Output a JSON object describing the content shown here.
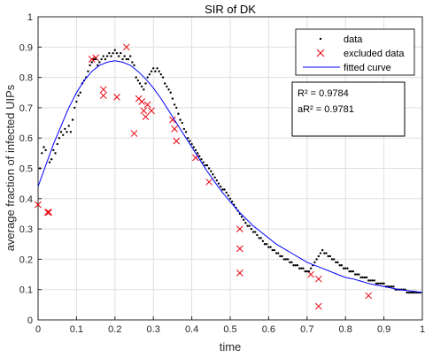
{
  "chart_data": {
    "type": "scatter",
    "title": "SIR of DK",
    "xlabel": "time",
    "ylabel": "average fraction of infected UIPs",
    "xlim": [
      0,
      1
    ],
    "ylim": [
      0,
      1
    ],
    "xticks": [
      "0",
      "0.1",
      "0.2",
      "0.3",
      "0.4",
      "0.5",
      "0.6",
      "0.7",
      "0.8",
      "0.9",
      "1"
    ],
    "yticks": [
      "0",
      "0.1",
      "0.2",
      "0.3",
      "0.4",
      "0.5",
      "0.6",
      "0.7",
      "0.8",
      "0.9",
      "1"
    ],
    "grid": true,
    "legend": {
      "placement": "top-right",
      "entries": [
        "data",
        "excluded data",
        "fitted curve"
      ]
    },
    "stats": {
      "r2": "R² = 0.9784",
      "ar2": "aR² = 0.9781"
    },
    "colors": {
      "data": "#000000",
      "excluded": "#e8000b",
      "fitted": "#0000ff"
    },
    "series": [
      {
        "name": "data",
        "style": "dots",
        "points": [
          [
            0.005,
            0.5
          ],
          [
            0.01,
            0.55
          ],
          [
            0.015,
            0.57
          ],
          [
            0.02,
            0.56
          ],
          [
            0.03,
            0.52
          ],
          [
            0.035,
            0.53
          ],
          [
            0.04,
            0.56
          ],
          [
            0.045,
            0.55
          ],
          [
            0.05,
            0.58
          ],
          [
            0.055,
            0.6
          ],
          [
            0.06,
            0.62
          ],
          [
            0.065,
            0.61
          ],
          [
            0.07,
            0.63
          ],
          [
            0.075,
            0.62
          ],
          [
            0.08,
            0.64
          ],
          [
            0.085,
            0.62
          ],
          [
            0.09,
            0.66
          ],
          [
            0.095,
            0.7
          ],
          [
            0.1,
            0.72
          ],
          [
            0.105,
            0.74
          ],
          [
            0.11,
            0.75
          ],
          [
            0.115,
            0.78
          ],
          [
            0.12,
            0.79
          ],
          [
            0.125,
            0.8
          ],
          [
            0.13,
            0.82
          ],
          [
            0.135,
            0.84
          ],
          [
            0.14,
            0.85
          ],
          [
            0.145,
            0.86
          ],
          [
            0.15,
            0.86
          ],
          [
            0.155,
            0.84
          ],
          [
            0.16,
            0.85
          ],
          [
            0.165,
            0.86
          ],
          [
            0.17,
            0.87
          ],
          [
            0.175,
            0.86
          ],
          [
            0.18,
            0.87
          ],
          [
            0.185,
            0.88
          ],
          [
            0.19,
            0.87
          ],
          [
            0.195,
            0.88
          ],
          [
            0.2,
            0.89
          ],
          [
            0.205,
            0.88
          ],
          [
            0.21,
            0.87
          ],
          [
            0.215,
            0.88
          ],
          [
            0.22,
            0.86
          ],
          [
            0.225,
            0.87
          ],
          [
            0.23,
            0.86
          ],
          [
            0.235,
            0.86
          ],
          [
            0.24,
            0.87
          ],
          [
            0.245,
            0.85
          ],
          [
            0.25,
            0.84
          ],
          [
            0.255,
            0.8
          ],
          [
            0.26,
            0.79
          ],
          [
            0.265,
            0.78
          ],
          [
            0.27,
            0.77
          ],
          [
            0.275,
            0.76
          ],
          [
            0.28,
            0.78
          ],
          [
            0.285,
            0.8
          ],
          [
            0.29,
            0.81
          ],
          [
            0.295,
            0.82
          ],
          [
            0.3,
            0.83
          ],
          [
            0.305,
            0.82
          ],
          [
            0.31,
            0.83
          ],
          [
            0.315,
            0.82
          ],
          [
            0.32,
            0.81
          ],
          [
            0.325,
            0.8
          ],
          [
            0.33,
            0.78
          ],
          [
            0.335,
            0.77
          ],
          [
            0.34,
            0.76
          ],
          [
            0.345,
            0.75
          ],
          [
            0.35,
            0.73
          ],
          [
            0.355,
            0.71
          ],
          [
            0.36,
            0.7
          ],
          [
            0.365,
            0.68
          ],
          [
            0.37,
            0.66
          ],
          [
            0.375,
            0.65
          ],
          [
            0.38,
            0.63
          ],
          [
            0.385,
            0.62
          ],
          [
            0.39,
            0.6
          ],
          [
            0.395,
            0.59
          ],
          [
            0.4,
            0.58
          ],
          [
            0.405,
            0.57
          ],
          [
            0.41,
            0.56
          ],
          [
            0.415,
            0.55
          ],
          [
            0.42,
            0.54
          ],
          [
            0.425,
            0.53
          ],
          [
            0.43,
            0.52
          ],
          [
            0.435,
            0.51
          ],
          [
            0.44,
            0.51
          ],
          [
            0.445,
            0.5
          ],
          [
            0.45,
            0.49
          ],
          [
            0.455,
            0.48
          ],
          [
            0.46,
            0.47
          ],
          [
            0.465,
            0.46
          ],
          [
            0.47,
            0.45
          ],
          [
            0.475,
            0.44
          ],
          [
            0.48,
            0.43
          ],
          [
            0.485,
            0.43
          ],
          [
            0.49,
            0.42
          ],
          [
            0.495,
            0.41
          ],
          [
            0.5,
            0.4
          ],
          [
            0.505,
            0.39
          ],
          [
            0.51,
            0.38
          ],
          [
            0.515,
            0.37
          ],
          [
            0.52,
            0.36
          ],
          [
            0.525,
            0.35
          ],
          [
            0.53,
            0.34
          ],
          [
            0.535,
            0.33
          ],
          [
            0.54,
            0.32
          ],
          [
            0.545,
            0.31
          ],
          [
            0.55,
            0.31
          ],
          [
            0.555,
            0.3
          ],
          [
            0.56,
            0.29
          ],
          [
            0.565,
            0.29
          ],
          [
            0.57,
            0.28
          ],
          [
            0.575,
            0.27
          ],
          [
            0.58,
            0.27
          ],
          [
            0.585,
            0.26
          ],
          [
            0.59,
            0.25
          ],
          [
            0.595,
            0.25
          ],
          [
            0.6,
            0.24
          ],
          [
            0.605,
            0.24
          ],
          [
            0.61,
            0.23
          ],
          [
            0.615,
            0.23
          ],
          [
            0.62,
            0.22
          ],
          [
            0.625,
            0.22
          ],
          [
            0.63,
            0.21
          ],
          [
            0.635,
            0.21
          ],
          [
            0.64,
            0.2
          ],
          [
            0.645,
            0.2
          ],
          [
            0.65,
            0.2
          ],
          [
            0.655,
            0.19
          ],
          [
            0.66,
            0.19
          ],
          [
            0.665,
            0.18
          ],
          [
            0.67,
            0.18
          ],
          [
            0.675,
            0.18
          ],
          [
            0.68,
            0.17
          ],
          [
            0.685,
            0.17
          ],
          [
            0.69,
            0.17
          ],
          [
            0.695,
            0.16
          ],
          [
            0.7,
            0.16
          ],
          [
            0.705,
            0.16
          ],
          [
            0.71,
            0.17
          ],
          [
            0.715,
            0.18
          ],
          [
            0.72,
            0.19
          ],
          [
            0.725,
            0.2
          ],
          [
            0.73,
            0.21
          ],
          [
            0.735,
            0.22
          ],
          [
            0.74,
            0.23
          ],
          [
            0.745,
            0.22
          ],
          [
            0.75,
            0.22
          ],
          [
            0.755,
            0.21
          ],
          [
            0.76,
            0.21
          ],
          [
            0.765,
            0.2
          ],
          [
            0.77,
            0.2
          ],
          [
            0.775,
            0.19
          ],
          [
            0.78,
            0.19
          ],
          [
            0.785,
            0.18
          ],
          [
            0.79,
            0.18
          ],
          [
            0.795,
            0.17
          ],
          [
            0.8,
            0.17
          ],
          [
            0.805,
            0.17
          ],
          [
            0.81,
            0.16
          ],
          [
            0.815,
            0.16
          ],
          [
            0.82,
            0.16
          ],
          [
            0.825,
            0.15
          ],
          [
            0.83,
            0.15
          ],
          [
            0.835,
            0.15
          ],
          [
            0.84,
            0.14
          ],
          [
            0.845,
            0.14
          ],
          [
            0.85,
            0.14
          ],
          [
            0.855,
            0.14
          ],
          [
            0.86,
            0.13
          ],
          [
            0.865,
            0.13
          ],
          [
            0.87,
            0.13
          ],
          [
            0.875,
            0.13
          ],
          [
            0.88,
            0.12
          ],
          [
            0.885,
            0.12
          ],
          [
            0.89,
            0.12
          ],
          [
            0.895,
            0.12
          ],
          [
            0.9,
            0.12
          ],
          [
            0.905,
            0.11
          ],
          [
            0.91,
            0.11
          ],
          [
            0.915,
            0.11
          ],
          [
            0.92,
            0.11
          ],
          [
            0.925,
            0.11
          ],
          [
            0.93,
            0.1
          ],
          [
            0.935,
            0.1
          ],
          [
            0.94,
            0.1
          ],
          [
            0.945,
            0.1
          ],
          [
            0.95,
            0.1
          ],
          [
            0.955,
            0.1
          ],
          [
            0.96,
            0.09
          ],
          [
            0.965,
            0.09
          ],
          [
            0.97,
            0.09
          ],
          [
            0.975,
            0.09
          ],
          [
            0.98,
            0.09
          ],
          [
            0.985,
            0.09
          ],
          [
            0.99,
            0.09
          ],
          [
            0.995,
            0.09
          ]
        ]
      },
      {
        "name": "excluded data",
        "style": "x",
        "points": [
          [
            0.0,
            0.38
          ],
          [
            0.025,
            0.355
          ],
          [
            0.028,
            0.355
          ],
          [
            0.14,
            0.86
          ],
          [
            0.15,
            0.865
          ],
          [
            0.17,
            0.76
          ],
          [
            0.17,
            0.74
          ],
          [
            0.205,
            0.735
          ],
          [
            0.23,
            0.9
          ],
          [
            0.25,
            0.615
          ],
          [
            0.262,
            0.73
          ],
          [
            0.27,
            0.72
          ],
          [
            0.275,
            0.69
          ],
          [
            0.28,
            0.67
          ],
          [
            0.285,
            0.71
          ],
          [
            0.295,
            0.69
          ],
          [
            0.35,
            0.66
          ],
          [
            0.355,
            0.63
          ],
          [
            0.36,
            0.59
          ],
          [
            0.41,
            0.535
          ],
          [
            0.445,
            0.455
          ],
          [
            0.525,
            0.3
          ],
          [
            0.525,
            0.235
          ],
          [
            0.525,
            0.155
          ],
          [
            0.71,
            0.15
          ],
          [
            0.73,
            0.135
          ],
          [
            0.73,
            0.045
          ],
          [
            0.86,
            0.08
          ]
        ]
      },
      {
        "name": "fitted curve",
        "style": "line",
        "points": [
          [
            0.0,
            0.44
          ],
          [
            0.02,
            0.51
          ],
          [
            0.04,
            0.58
          ],
          [
            0.06,
            0.64
          ],
          [
            0.08,
            0.7
          ],
          [
            0.1,
            0.75
          ],
          [
            0.12,
            0.79
          ],
          [
            0.14,
            0.82
          ],
          [
            0.16,
            0.84
          ],
          [
            0.18,
            0.85
          ],
          [
            0.2,
            0.855
          ],
          [
            0.22,
            0.85
          ],
          [
            0.24,
            0.84
          ],
          [
            0.26,
            0.82
          ],
          [
            0.28,
            0.795
          ],
          [
            0.3,
            0.765
          ],
          [
            0.32,
            0.73
          ],
          [
            0.34,
            0.69
          ],
          [
            0.36,
            0.65
          ],
          [
            0.38,
            0.61
          ],
          [
            0.4,
            0.57
          ],
          [
            0.42,
            0.53
          ],
          [
            0.44,
            0.49
          ],
          [
            0.46,
            0.455
          ],
          [
            0.48,
            0.42
          ],
          [
            0.5,
            0.39
          ],
          [
            0.52,
            0.36
          ],
          [
            0.54,
            0.335
          ],
          [
            0.56,
            0.31
          ],
          [
            0.58,
            0.29
          ],
          [
            0.6,
            0.27
          ],
          [
            0.62,
            0.25
          ],
          [
            0.64,
            0.235
          ],
          [
            0.66,
            0.22
          ],
          [
            0.68,
            0.205
          ],
          [
            0.7,
            0.19
          ],
          [
            0.72,
            0.18
          ],
          [
            0.74,
            0.17
          ],
          [
            0.76,
            0.16
          ],
          [
            0.78,
            0.15
          ],
          [
            0.8,
            0.14
          ],
          [
            0.82,
            0.135
          ],
          [
            0.84,
            0.128
          ],
          [
            0.86,
            0.12
          ],
          [
            0.88,
            0.115
          ],
          [
            0.9,
            0.11
          ],
          [
            0.92,
            0.105
          ],
          [
            0.94,
            0.1
          ],
          [
            0.96,
            0.097
          ],
          [
            0.98,
            0.094
          ],
          [
            1.0,
            0.09
          ]
        ]
      }
    ]
  }
}
